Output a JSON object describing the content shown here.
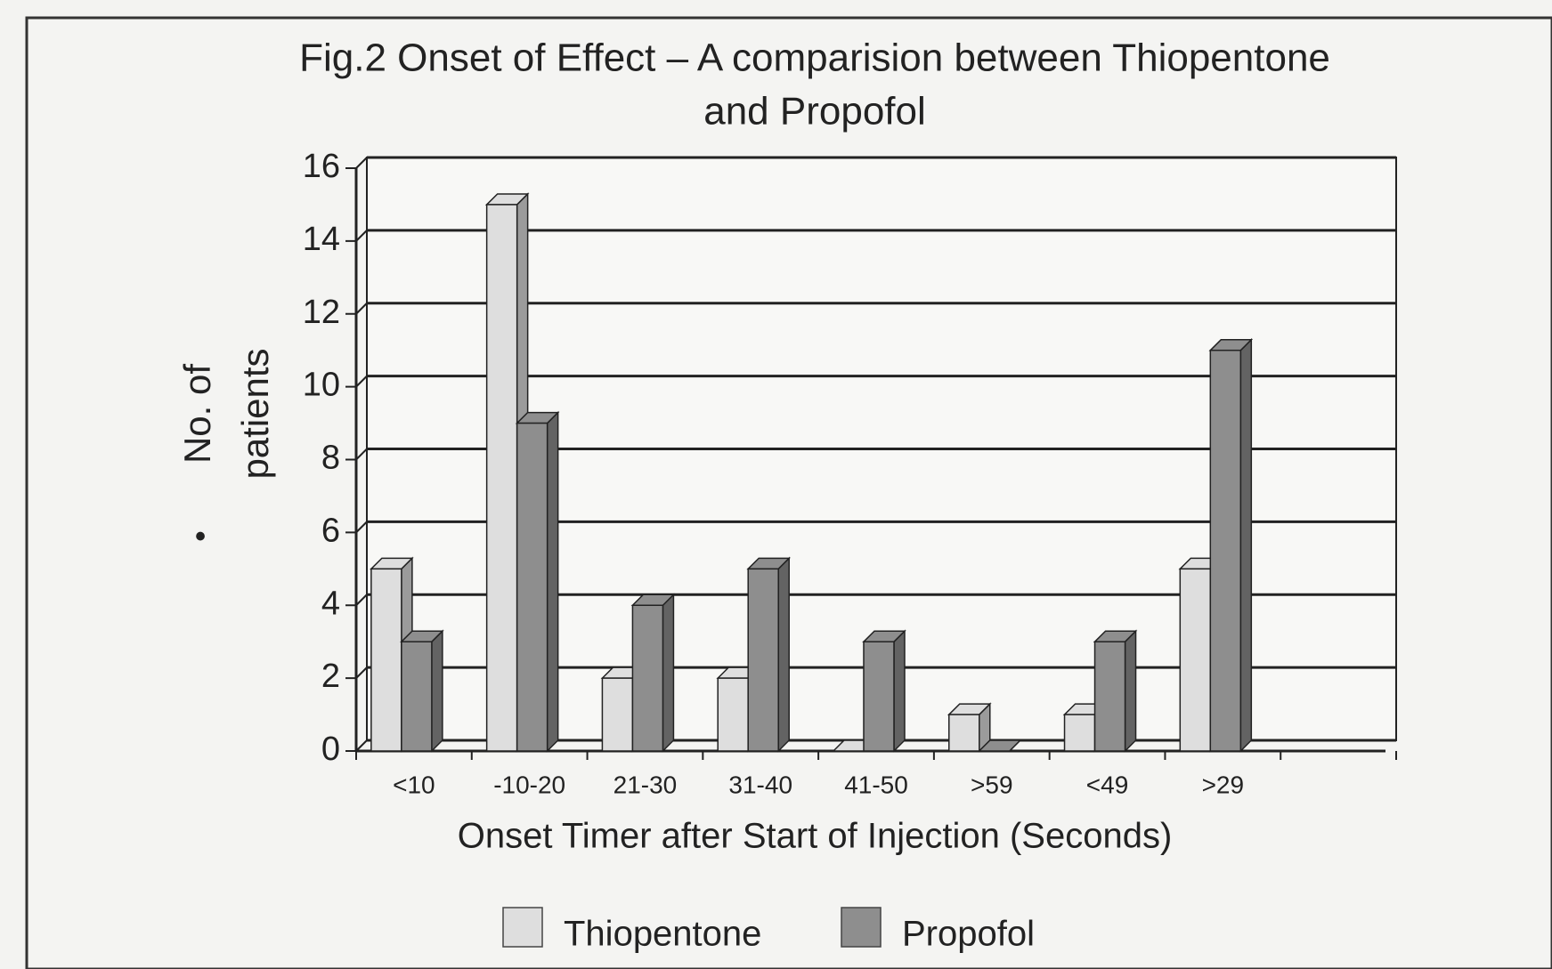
{
  "chart_data": {
    "type": "bar",
    "title": [
      "Fig.2 Onset of Effect – A comparision between Thiopentone",
      "and Propofol"
    ],
    "ylabel": [
      "No. of",
      "patients"
    ],
    "ylabel_marker": "•",
    "xlabel": "Onset Timer after Start of Injection (Seconds)",
    "categories": [
      "<10",
      "-10-20",
      "21-30",
      "31-40",
      "41-50",
      ">59",
      "<49",
      ">29",
      null
    ],
    "series": [
      {
        "name": "Thiopentone",
        "color": "#dedede",
        "values": [
          5,
          15,
          2,
          2,
          0,
          1,
          1,
          5,
          null
        ]
      },
      {
        "name": "Propofol",
        "color": "#8e8e8e",
        "values": [
          3,
          9,
          4,
          5,
          3,
          0,
          3,
          11,
          null
        ]
      }
    ],
    "ylim": [
      0,
      16
    ],
    "yticks": [
      0,
      2,
      4,
      6,
      8,
      10,
      12,
      14,
      16
    ],
    "grid": true
  }
}
